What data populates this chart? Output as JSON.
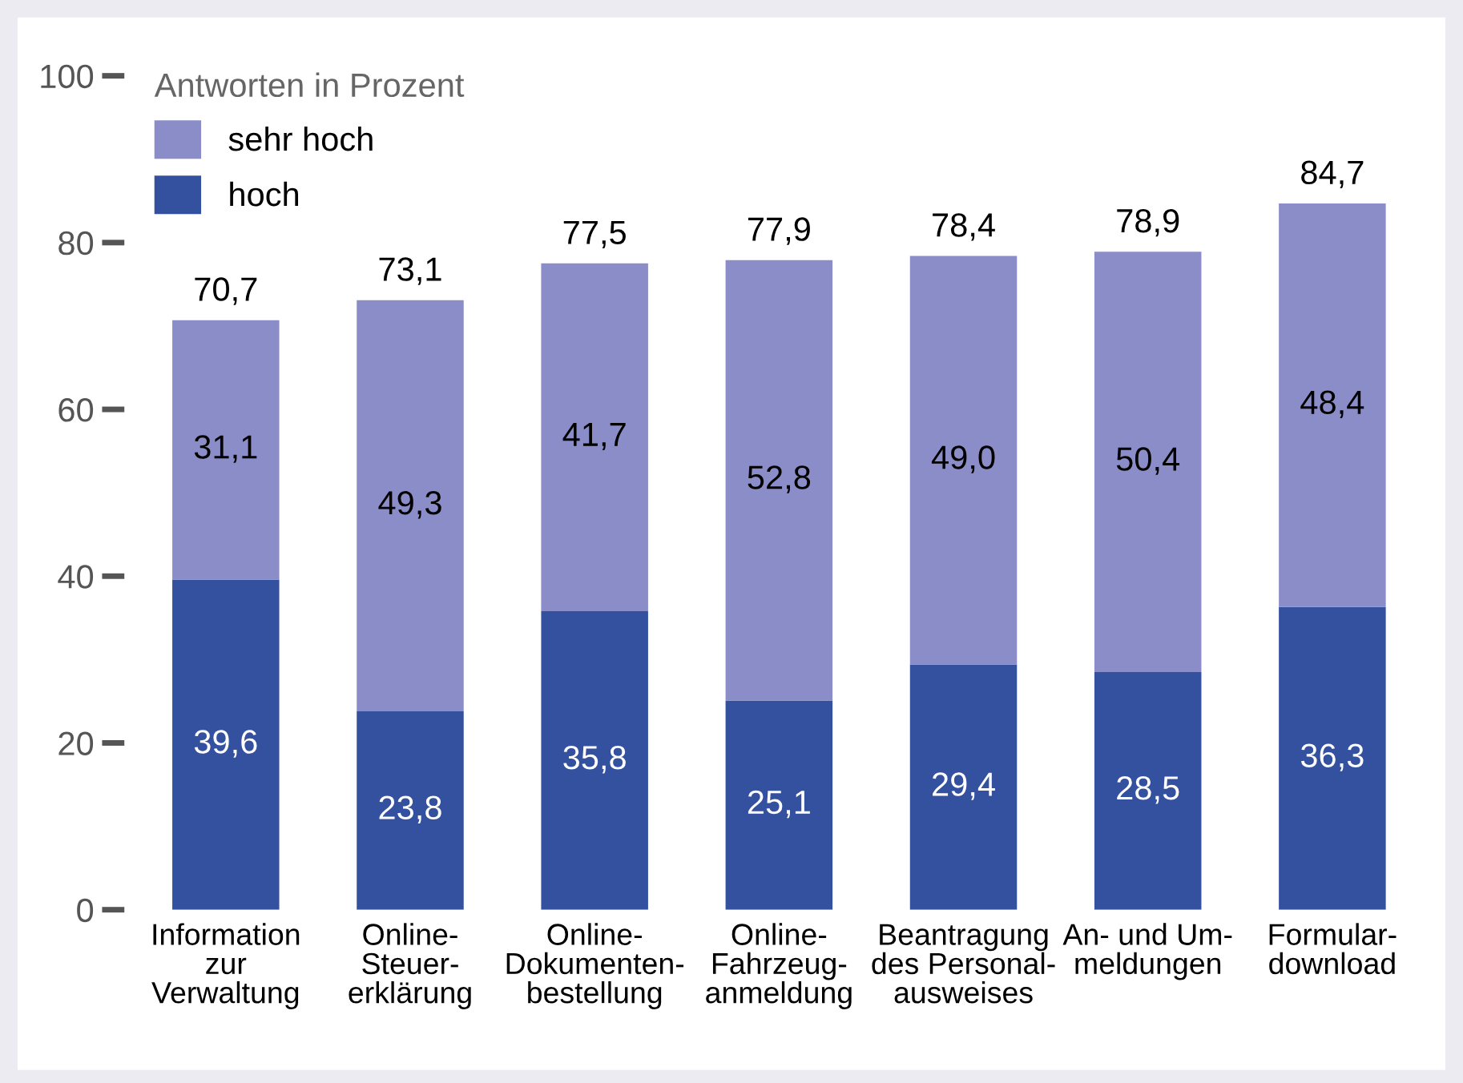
{
  "chart_data": {
    "type": "bar",
    "stacked": true,
    "legend_title": "Antworten in Prozent",
    "legend": "top left",
    "categories": [
      "Information\nzur\nVerwaltung",
      "Online-\nSteuer-\nerklärung",
      "Online-\nDokumenten-\nbestellung",
      "Online-\nFahrzeug-\nanmeldung",
      "Beantragung\ndes Personal-\nausweises",
      "An- und Um-\nmeldungen",
      "Formular-\ndownload"
    ],
    "series": [
      {
        "name": "hoch",
        "color": "#34519f",
        "values": [
          39.6,
          23.8,
          35.8,
          25.1,
          29.4,
          28.5,
          36.3
        ],
        "value_labels": [
          "39,6",
          "23,8",
          "35,8",
          "25,1",
          "29,4",
          "28,5",
          "36,3"
        ]
      },
      {
        "name": "sehr hoch",
        "color": "#8a8dc7",
        "values": [
          31.1,
          49.3,
          41.7,
          52.8,
          49.0,
          50.4,
          48.4
        ],
        "value_labels": [
          "31,1",
          "49,3",
          "41,7",
          "52,8",
          "49,0",
          "50,4",
          "48,4"
        ]
      }
    ],
    "totals": [
      "70,7",
      "73,1",
      "77,5",
      "77,9",
      "78,4",
      "78,9",
      "84,7"
    ],
    "ylim": [
      0,
      100
    ],
    "yticks": [
      0,
      20,
      40,
      60,
      80,
      100
    ],
    "grid": false
  }
}
